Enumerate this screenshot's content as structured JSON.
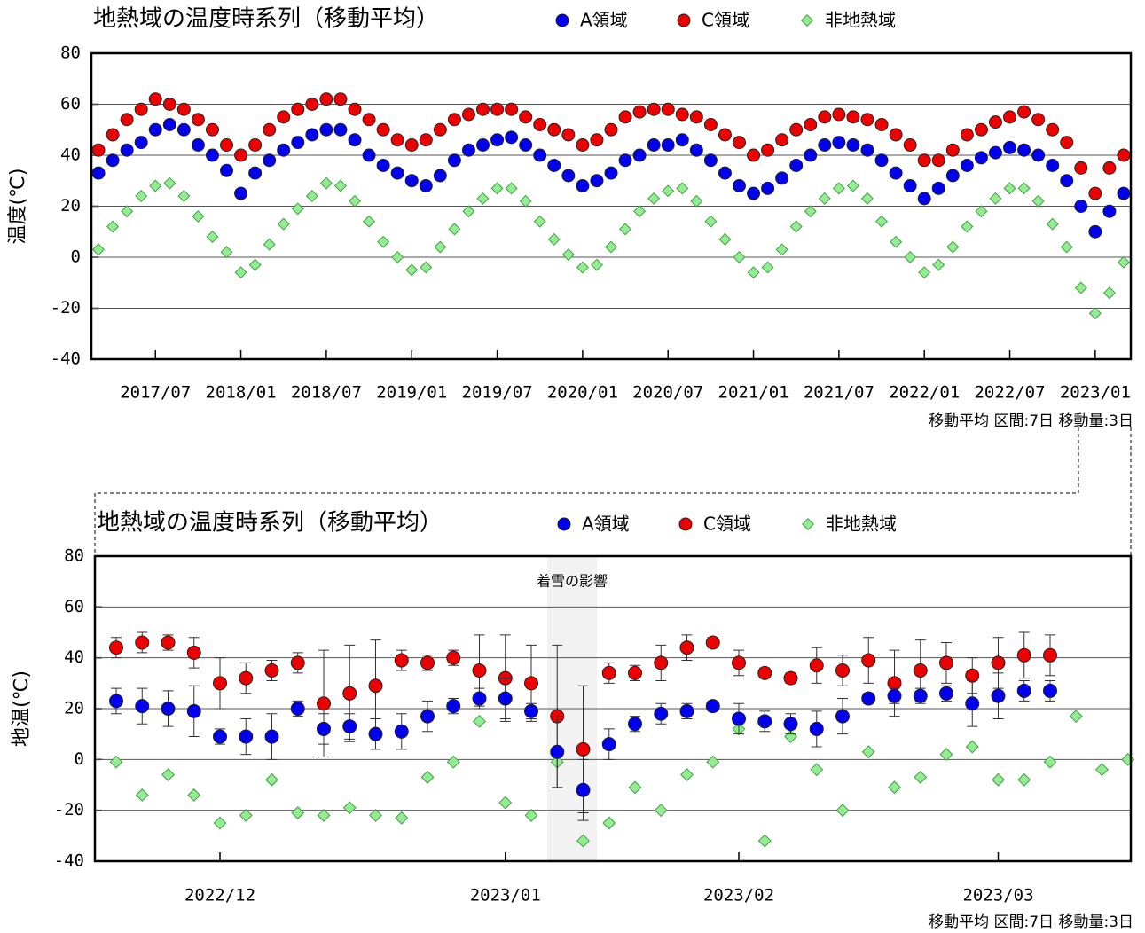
{
  "chart_data": [
    {
      "type": "scatter",
      "title": "地熱域の温度時系列（移動平均）",
      "y_label": "温度(℃)",
      "note": "移動平均 区間:7日 移動量:3日",
      "grid": true,
      "ylim": [
        -40,
        80
      ],
      "yticks": [
        -40,
        -20,
        0,
        20,
        40,
        60,
        80
      ],
      "categories": [
        null,
        null,
        null,
        null,
        "2017/07",
        null,
        null,
        null,
        null,
        null,
        "2018/01",
        null,
        null,
        null,
        null,
        null,
        "2018/07",
        null,
        null,
        null,
        null,
        null,
        "2019/01",
        null,
        null,
        null,
        null,
        null,
        "2019/07",
        null,
        null,
        null,
        null,
        null,
        "2020/01",
        null,
        null,
        null,
        null,
        null,
        "2020/07",
        null,
        null,
        null,
        null,
        null,
        "2021/01",
        null,
        null,
        null,
        null,
        null,
        "2021/07",
        null,
        null,
        null,
        null,
        null,
        "2022/01",
        null,
        null,
        null,
        null,
        null,
        "2022/07",
        null,
        null,
        null,
        null,
        null,
        "2023/01",
        null,
        null
      ],
      "series": [
        {
          "name": "A領域",
          "color": "#0000ee",
          "marker": "circle",
          "values": [
            33,
            38,
            42,
            45,
            50,
            52,
            50,
            44,
            40,
            34,
            25,
            33,
            38,
            42,
            45,
            48,
            50,
            50,
            46,
            40,
            36,
            33,
            30,
            28,
            32,
            38,
            42,
            44,
            46,
            47,
            44,
            40,
            36,
            32,
            28,
            30,
            33,
            38,
            40,
            44,
            44,
            46,
            42,
            38,
            33,
            28,
            25,
            27,
            31,
            36,
            40,
            44,
            45,
            44,
            42,
            38,
            33,
            28,
            23,
            27,
            32,
            36,
            39,
            41,
            43,
            42,
            40,
            36,
            30,
            20,
            10,
            18,
            25
          ]
        },
        {
          "name": "C領域",
          "color": "#ee0000",
          "marker": "circle",
          "values": [
            42,
            48,
            54,
            58,
            62,
            60,
            58,
            54,
            50,
            44,
            40,
            44,
            50,
            55,
            58,
            60,
            62,
            62,
            58,
            54,
            50,
            46,
            44,
            46,
            50,
            54,
            56,
            58,
            58,
            58,
            55,
            52,
            50,
            48,
            44,
            46,
            50,
            55,
            57,
            58,
            58,
            56,
            55,
            52,
            48,
            45,
            40,
            42,
            46,
            50,
            52,
            55,
            56,
            55,
            54,
            52,
            48,
            44,
            38,
            38,
            42,
            48,
            50,
            53,
            55,
            57,
            54,
            50,
            45,
            35,
            25,
            35,
            40
          ]
        },
        {
          "name": "非地熱域",
          "color": "#90ee90",
          "marker": "diamond",
          "values": [
            3,
            12,
            18,
            24,
            28,
            29,
            24,
            16,
            8,
            2,
            -6,
            -3,
            5,
            13,
            19,
            24,
            29,
            28,
            22,
            14,
            6,
            0,
            -5,
            -4,
            4,
            11,
            18,
            23,
            27,
            27,
            22,
            14,
            7,
            1,
            -4,
            -3,
            4,
            11,
            18,
            23,
            26,
            27,
            22,
            14,
            7,
            0,
            -6,
            -4,
            3,
            12,
            18,
            23,
            27,
            28,
            23,
            14,
            6,
            0,
            -6,
            -3,
            4,
            12,
            18,
            23,
            27,
            27,
            22,
            13,
            4,
            -12,
            -22,
            -14,
            -2
          ]
        }
      ]
    },
    {
      "type": "scatter",
      "title": "地熱域の温度時系列（移動平均）",
      "y_label": "地温(℃)",
      "note": "移動平均 区間:7日 移動量:3日",
      "annotation": "着雪の影響",
      "grid": true,
      "ylim": [
        -40,
        80
      ],
      "yticks": [
        -40,
        -20,
        0,
        20,
        40,
        60,
        80
      ],
      "categories": [
        null,
        null,
        null,
        null,
        "2022/12",
        null,
        null,
        null,
        null,
        null,
        null,
        null,
        null,
        null,
        null,
        "2023/01",
        null,
        null,
        null,
        null,
        null,
        null,
        null,
        null,
        "2023/02",
        null,
        null,
        null,
        null,
        null,
        null,
        null,
        null,
        null,
        "2023/03",
        null,
        null,
        null,
        null,
        null
      ],
      "series": [
        {
          "name": "A領域",
          "color": "#0000ee",
          "marker": "circle",
          "values": [
            23,
            21,
            20,
            19,
            9,
            9,
            9,
            20,
            12,
            13,
            10,
            11,
            17,
            21,
            24,
            24,
            19,
            3,
            -12,
            6,
            14,
            18,
            19,
            21,
            16,
            15,
            14,
            12,
            17,
            24,
            25,
            25,
            26,
            22,
            25,
            27,
            27,
            null,
            null,
            null
          ],
          "errors": [
            5,
            7,
            7,
            10,
            3,
            7,
            9,
            3,
            6,
            5,
            6,
            7,
            6,
            3,
            4,
            8,
            3,
            14,
            12,
            6,
            3,
            4,
            3,
            2,
            6,
            4,
            4,
            7,
            7,
            2,
            3,
            3,
            3,
            9,
            9,
            4,
            4,
            null,
            null,
            null
          ]
        },
        {
          "name": "C領域",
          "color": "#ee0000",
          "marker": "circle",
          "values": [
            44,
            46,
            46,
            42,
            30,
            32,
            35,
            38,
            22,
            26,
            29,
            39,
            38,
            40,
            35,
            32,
            30,
            17,
            4,
            34,
            34,
            38,
            44,
            46,
            38,
            34,
            32,
            37,
            35,
            39,
            30,
            35,
            38,
            33,
            38,
            41,
            41,
            null,
            null,
            null
          ],
          "errors": [
            4,
            4,
            3,
            6,
            10,
            6,
            4,
            4,
            21,
            19,
            18,
            4,
            3,
            3,
            14,
            17,
            15,
            28,
            25,
            4,
            3,
            7,
            5,
            2,
            5,
            2,
            2,
            7,
            6,
            9,
            13,
            12,
            8,
            7,
            10,
            9,
            8,
            null,
            null,
            null
          ]
        },
        {
          "name": "非地熱域",
          "color": "#90ee90",
          "marker": "diamond",
          "values": [
            -1,
            -14,
            -6,
            -14,
            -25,
            -22,
            -8,
            -21,
            -22,
            -19,
            -22,
            -23,
            -7,
            -1,
            15,
            -17,
            -22,
            -1,
            -32,
            -25,
            -11,
            -20,
            -6,
            -1,
            12,
            -32,
            9,
            -4,
            -20,
            3,
            -11,
            -7,
            2,
            5,
            -8,
            -8,
            -1,
            17,
            -4,
            0
          ]
        }
      ]
    }
  ]
}
